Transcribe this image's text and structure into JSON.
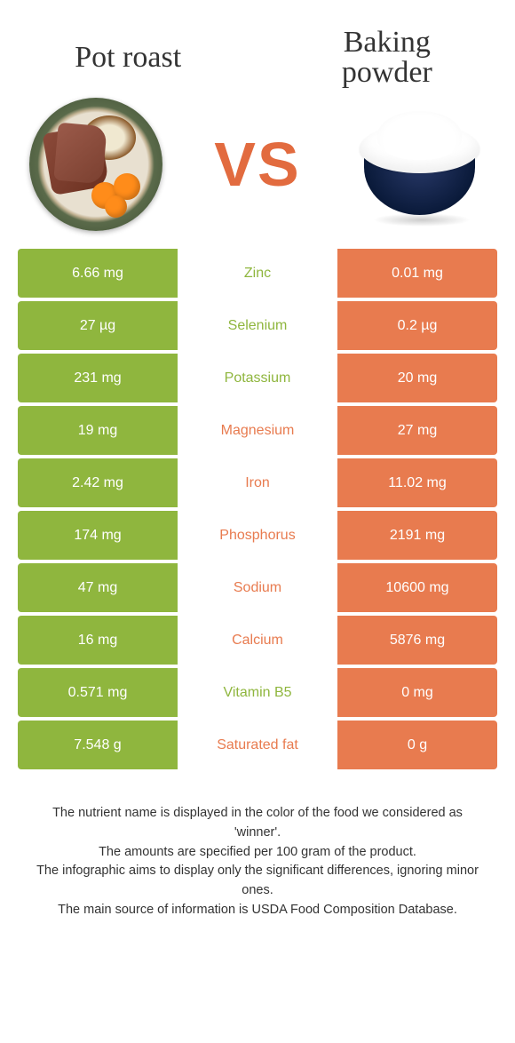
{
  "colors": {
    "left": "#8fb63e",
    "right": "#e87b4f",
    "left_text": "#8fb63e",
    "right_text": "#e87b4f"
  },
  "header": {
    "left_title": "Pot roast",
    "right_title": "Baking powder",
    "vs": "VS"
  },
  "rows": [
    {
      "left": "6.66 mg",
      "label": "Zinc",
      "right": "0.01 mg",
      "winner": "left"
    },
    {
      "left": "27 µg",
      "label": "Selenium",
      "right": "0.2 µg",
      "winner": "left"
    },
    {
      "left": "231 mg",
      "label": "Potassium",
      "right": "20 mg",
      "winner": "left"
    },
    {
      "left": "19 mg",
      "label": "Magnesium",
      "right": "27 mg",
      "winner": "right"
    },
    {
      "left": "2.42 mg",
      "label": "Iron",
      "right": "11.02 mg",
      "winner": "right"
    },
    {
      "left": "174 mg",
      "label": "Phosphorus",
      "right": "2191 mg",
      "winner": "right"
    },
    {
      "left": "47 mg",
      "label": "Sodium",
      "right": "10600 mg",
      "winner": "right"
    },
    {
      "left": "16 mg",
      "label": "Calcium",
      "right": "5876 mg",
      "winner": "right"
    },
    {
      "left": "0.571 mg",
      "label": "Vitamin B5",
      "right": "0 mg",
      "winner": "left"
    },
    {
      "left": "7.548 g",
      "label": "Saturated fat",
      "right": "0 g",
      "winner": "right"
    }
  ],
  "footnotes": [
    "The nutrient name is displayed in the color of the food we considered as 'winner'.",
    "The amounts are specified per 100 gram of the product.",
    "The infographic aims to display only the significant differences, ignoring minor ones.",
    "The main source of information is USDA Food Composition Database."
  ]
}
